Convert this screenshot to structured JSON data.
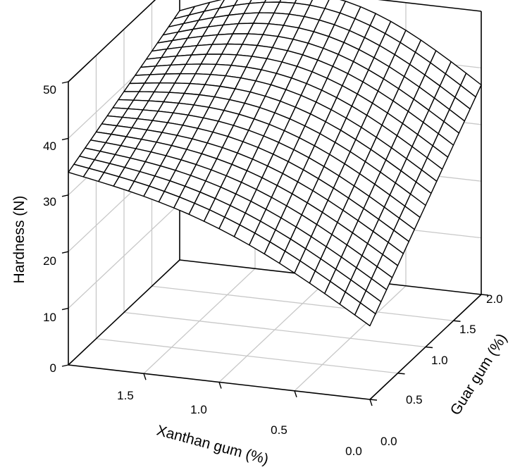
{
  "chart_data": {
    "type": "surface",
    "title": "",
    "xlabel": "Xanthan gum (%)",
    "ylabel": "Guar gum (%)",
    "zlabel": "Hardness (N)",
    "xlim": [
      0.0,
      2.0
    ],
    "ylim": [
      0.0,
      2.0
    ],
    "zlim": [
      0,
      50
    ],
    "x_ticks": [
      "0.0",
      "0.5",
      "1.0",
      "1.5"
    ],
    "y_ticks": [
      "0.0",
      "0.5",
      "1.0",
      "1.5",
      "2.0"
    ],
    "z_ticks": [
      "0",
      "10",
      "20",
      "30",
      "40",
      "50"
    ],
    "grid": true,
    "corner_values": [
      {
        "xanthan": 0.0,
        "guar": 0.0,
        "hardness": 13
      },
      {
        "xanthan": 0.0,
        "guar": 2.0,
        "hardness": 37
      },
      {
        "xanthan": 2.0,
        "guar": 0.0,
        "hardness": 34
      },
      {
        "xanthan": 2.0,
        "guar": 2.0,
        "hardness": 44
      }
    ],
    "mesh_lines": 21
  }
}
